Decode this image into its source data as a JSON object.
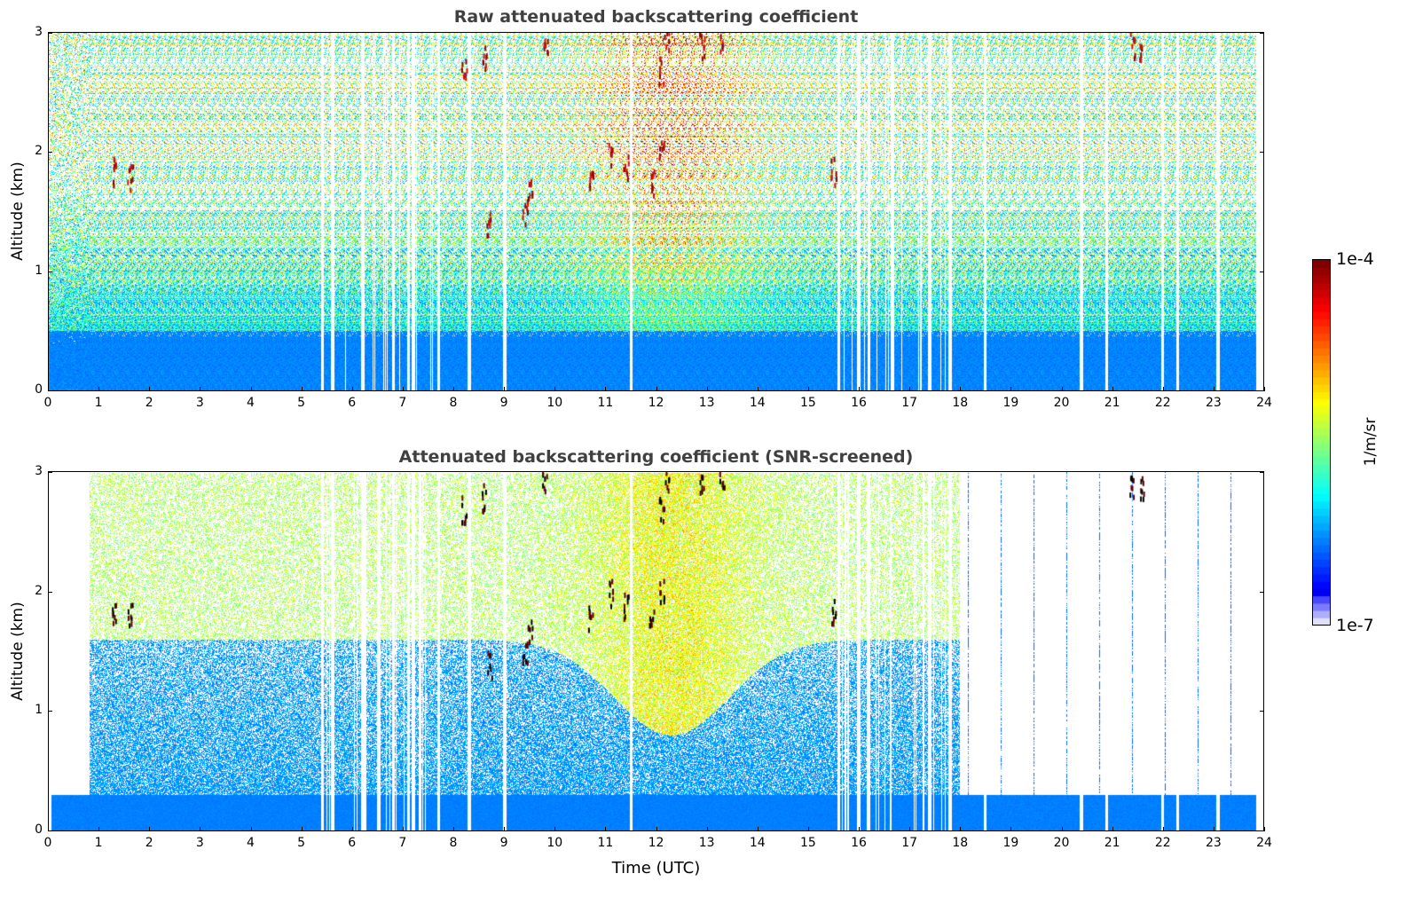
{
  "chart_data": [
    {
      "type": "heatmap",
      "title": "Raw attenuated backscattering coefficient",
      "xlabel": "",
      "ylabel": "Altitude (km)",
      "xlim": [
        0,
        24
      ],
      "ylim": [
        0,
        3
      ],
      "xticks": [
        "0",
        "1",
        "2",
        "3",
        "4",
        "5",
        "6",
        "7",
        "8",
        "9",
        "10",
        "11",
        "12",
        "13",
        "14",
        "15",
        "16",
        "17",
        "18",
        "19",
        "20",
        "21",
        "22",
        "23",
        "24"
      ],
      "yticks": [
        "0",
        "1",
        "2",
        "3"
      ],
      "description_values": {
        "surface_layer_top_km": 0.5,
        "missing_profile_times": [
          5.4,
          5.6,
          6.2,
          6.8,
          7.1,
          7.2,
          7.7,
          8.3,
          9.0,
          11.5,
          15.6,
          16.0,
          16.2,
          17.4,
          17.8,
          18.5,
          20.4,
          20.9,
          22.0,
          22.3,
          23.1
        ]
      }
    },
    {
      "type": "heatmap",
      "title": "Attenuated backscattering coefficient (SNR-screened)",
      "xlabel": "Time (UTC)",
      "ylabel": "Altitude (km)",
      "xlim": [
        0,
        24
      ],
      "ylim": [
        0,
        3
      ],
      "xticks": [
        "0",
        "1",
        "2",
        "3",
        "4",
        "5",
        "6",
        "7",
        "8",
        "9",
        "10",
        "11",
        "12",
        "13",
        "14",
        "15",
        "16",
        "17",
        "18",
        "19",
        "20",
        "21",
        "22",
        "23",
        "24"
      ],
      "yticks": [
        "0",
        "1",
        "2",
        "3"
      ],
      "description_values": {
        "surface_layer_top_km": 0.3,
        "boundary_layer_top_km": 1.6,
        "screened_after_time": 18
      }
    }
  ],
  "clouds": [
    [
      1.3,
      1.85
    ],
    [
      1.6,
      1.8
    ],
    [
      8.2,
      2.7
    ],
    [
      8.6,
      2.8
    ],
    [
      8.7,
      1.4
    ],
    [
      9.4,
      1.5
    ],
    [
      9.5,
      1.7
    ],
    [
      9.8,
      2.95
    ],
    [
      10.7,
      1.8
    ],
    [
      11.1,
      2.0
    ],
    [
      11.4,
      1.9
    ],
    [
      11.9,
      1.75
    ],
    [
      12.1,
      2.0
    ],
    [
      12.1,
      2.7
    ],
    [
      12.2,
      2.95
    ],
    [
      12.9,
      2.9
    ],
    [
      13.3,
      2.95
    ],
    [
      15.5,
      1.85
    ],
    [
      21.4,
      2.9
    ],
    [
      21.6,
      2.9
    ]
  ],
  "colorbar": {
    "label": "1/m/sr",
    "max_label": "1e-4",
    "min_label": "1e-7",
    "log_range": [
      -7,
      -4
    ]
  }
}
